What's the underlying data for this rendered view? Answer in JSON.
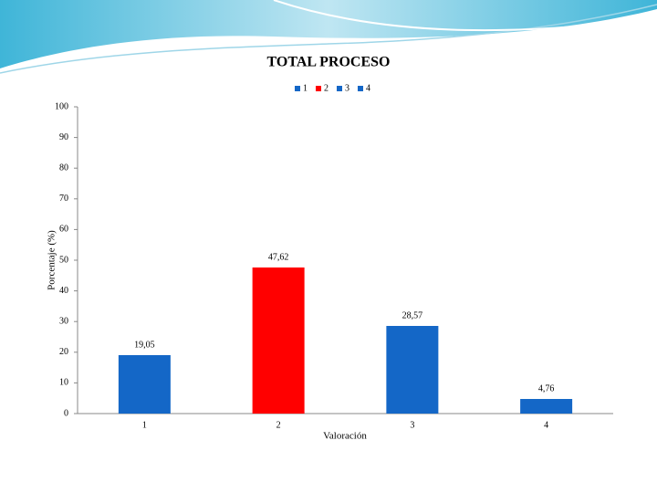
{
  "chart_data": {
    "type": "bar",
    "title": "TOTAL PROCESO",
    "x_label": "Valoración",
    "y_label": "Porcentaje (%)",
    "categories": [
      "1",
      "2",
      "3",
      "4"
    ],
    "values": [
      19.05,
      47.62,
      28.57,
      4.76
    ],
    "value_labels": [
      "19,05",
      "47,62",
      "28,57",
      "4,76"
    ],
    "colors": [
      "#1467c7",
      "#ff0000",
      "#1467c7",
      "#1467c7"
    ],
    "ylim": [
      0,
      100
    ],
    "yticks": [
      0,
      10,
      20,
      30,
      40,
      50,
      60,
      70,
      80,
      90,
      100
    ],
    "legend": "top"
  }
}
